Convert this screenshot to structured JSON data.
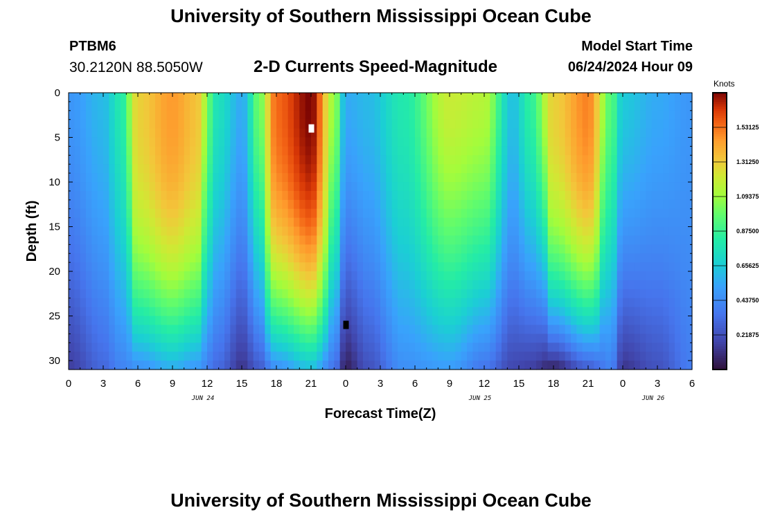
{
  "page": {
    "title": "University of Southern Mississippi Ocean Cube",
    "footer_title": "University of Southern Mississippi Ocean Cube",
    "station": "PTBM6",
    "coordinates": "30.2120N  88.5050W",
    "subtitle": "2-D Currents Speed-Magnitude",
    "model_start_label": "Model Start Time",
    "model_start_value": "06/24/2024 Hour 09"
  },
  "chart_data": {
    "type": "heatmap",
    "title": "2-D Currents Speed-Magnitude",
    "xlabel": "Forecast Time(Z)",
    "ylabel": "Depth (ft)",
    "x_hours": [
      0,
      54
    ],
    "ylim": [
      0,
      31
    ],
    "x_tick_labels": [
      "0",
      "3",
      "6",
      "9",
      "12",
      "15",
      "18",
      "21",
      "0",
      "3",
      "6",
      "9",
      "12",
      "15",
      "18",
      "21",
      "0",
      "3",
      "6"
    ],
    "y_ticks": [
      0,
      5,
      10,
      15,
      20,
      25,
      30
    ],
    "day_labels": [
      {
        "text": "JUN 24",
        "hour": 12
      },
      {
        "text": "JUN 25",
        "hour": 36
      },
      {
        "text": "JUN 26",
        "hour": 51
      }
    ],
    "colorbar": {
      "label": "Knots",
      "min": 0.0,
      "max": 1.75,
      "ticks": [
        "0.21875",
        "0.43750",
        "0.65625",
        "0.87500",
        "1.09375",
        "1.31250",
        "1.53125"
      ],
      "tick_values": [
        0.21875,
        0.4375,
        0.65625,
        0.875,
        1.09375,
        1.3125,
        1.53125
      ]
    },
    "speed_profile": [
      {
        "hour": 0,
        "top": 0.48,
        "bottom": 0.15
      },
      {
        "hour": 3,
        "top": 0.6,
        "bottom": 0.3
      },
      {
        "hour": 4.5,
        "top": 0.8,
        "bottom": 0.4
      },
      {
        "hour": 6,
        "top": 1.3,
        "bottom": 0.45
      },
      {
        "hour": 9,
        "top": 1.45,
        "bottom": 0.55
      },
      {
        "hour": 11,
        "top": 1.35,
        "bottom": 0.48
      },
      {
        "hour": 13,
        "top": 0.75,
        "bottom": 0.3
      },
      {
        "hour": 15,
        "top": 0.55,
        "bottom": 0.12
      },
      {
        "hour": 16.5,
        "top": 1.0,
        "bottom": 0.25
      },
      {
        "hour": 18,
        "top": 1.55,
        "bottom": 0.45
      },
      {
        "hour": 21,
        "top": 1.75,
        "bottom": 0.6
      },
      {
        "hour": 23,
        "top": 1.1,
        "bottom": 0.35
      },
      {
        "hour": 24,
        "top": 0.55,
        "bottom": 0.05
      },
      {
        "hour": 26,
        "top": 0.6,
        "bottom": 0.22
      },
      {
        "hour": 29,
        "top": 0.8,
        "bottom": 0.45
      },
      {
        "hour": 33,
        "top": 1.2,
        "bottom": 0.5
      },
      {
        "hour": 36,
        "top": 1.15,
        "bottom": 0.35
      },
      {
        "hour": 38.5,
        "top": 0.62,
        "bottom": 0.18
      },
      {
        "hour": 40,
        "top": 0.85,
        "bottom": 0.15
      },
      {
        "hour": 42,
        "top": 1.3,
        "bottom": 0.05
      },
      {
        "hour": 45,
        "top": 1.5,
        "bottom": 0.25
      },
      {
        "hour": 47,
        "top": 0.95,
        "bottom": 0.4
      },
      {
        "hour": 48,
        "top": 0.65,
        "bottom": 0.12
      },
      {
        "hour": 51,
        "top": 0.55,
        "bottom": 0.22
      },
      {
        "hour": 54,
        "top": 0.48,
        "bottom": 0.38
      }
    ],
    "markers": [
      {
        "hour": 21,
        "depth": 4,
        "color": "#ffffff"
      },
      {
        "hour": 24,
        "depth": 26,
        "color": "#000000"
      }
    ]
  }
}
